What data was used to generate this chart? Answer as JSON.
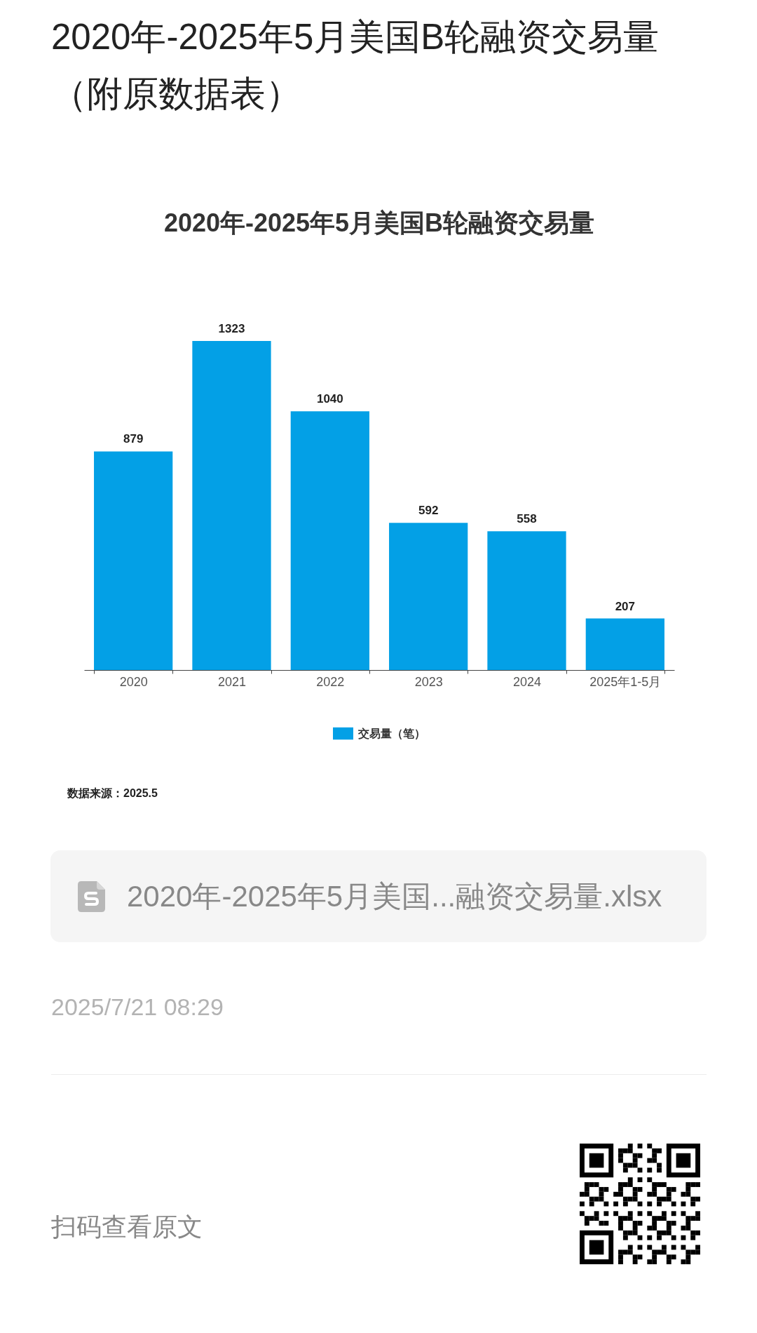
{
  "chart_data": {
    "type": "bar",
    "title": "2020年-2025年5月美国B轮融资交易量",
    "categories": [
      "2020",
      "2021",
      "2022",
      "2023",
      "2024",
      "2025年1-5月"
    ],
    "series": [
      {
        "name": "交易量（笔）",
        "color": "#03a0e6",
        "values": [
          879,
          1323,
          1040,
          592,
          558,
          207
        ]
      }
    ],
    "data_labels": true,
    "legend": "bottom",
    "tick_labels": "x",
    "annotations": [
      "2020年-2025年5月美国B轮融资交易量（附原数据表）",
      "数据来源：2025.5",
      "2020年-2025年5月美国...融资交易量.xlsx",
      "2025/7/21 08:29",
      "扫码查看原文"
    ]
  }
}
